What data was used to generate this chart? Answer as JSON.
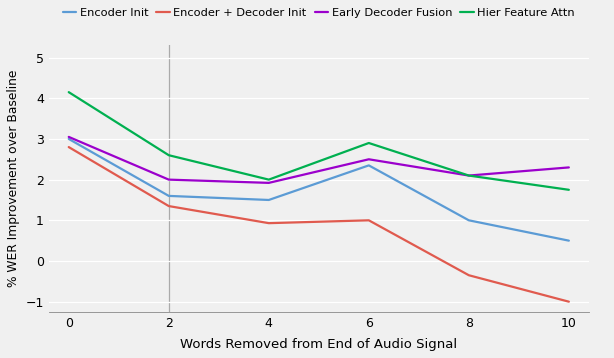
{
  "x": [
    0,
    2,
    4,
    6,
    8,
    10
  ],
  "encoder_init": [
    3.0,
    1.6,
    1.5,
    2.35,
    1.0,
    0.5
  ],
  "encoder_decoder_init": [
    2.8,
    1.35,
    0.93,
    1.0,
    -0.35,
    -1.0
  ],
  "early_decoder_fusion": [
    3.05,
    2.0,
    1.92,
    2.5,
    2.1,
    2.3
  ],
  "hier_feature_attn": [
    4.15,
    2.6,
    2.0,
    2.9,
    2.1,
    1.75
  ],
  "colors": {
    "encoder_init": "#5b9bd5",
    "encoder_decoder_init": "#e05a4e",
    "early_decoder_fusion": "#9b00cc",
    "hier_feature_attn": "#00b050"
  },
  "labels": {
    "encoder_init": "Encoder Init",
    "encoder_decoder_init": "Encoder + Decoder Init",
    "early_decoder_fusion": "Early Decoder Fusion",
    "hier_feature_attn": "Hier Feature Attn"
  },
  "xlabel": "Words Removed from End of Audio Signal",
  "ylabel": "% WER Improvement over Baseline",
  "ylim": [
    -1.25,
    5.3
  ],
  "yticks": [
    -1,
    0,
    1,
    2,
    3,
    4,
    5
  ],
  "xticks": [
    0,
    2,
    4,
    6,
    8,
    10
  ],
  "vline_x": 2,
  "figsize": [
    6.14,
    3.58
  ],
  "dpi": 100,
  "bg_color": "#f0f0f0",
  "grid_color": "#ffffff",
  "linewidth": 1.6
}
